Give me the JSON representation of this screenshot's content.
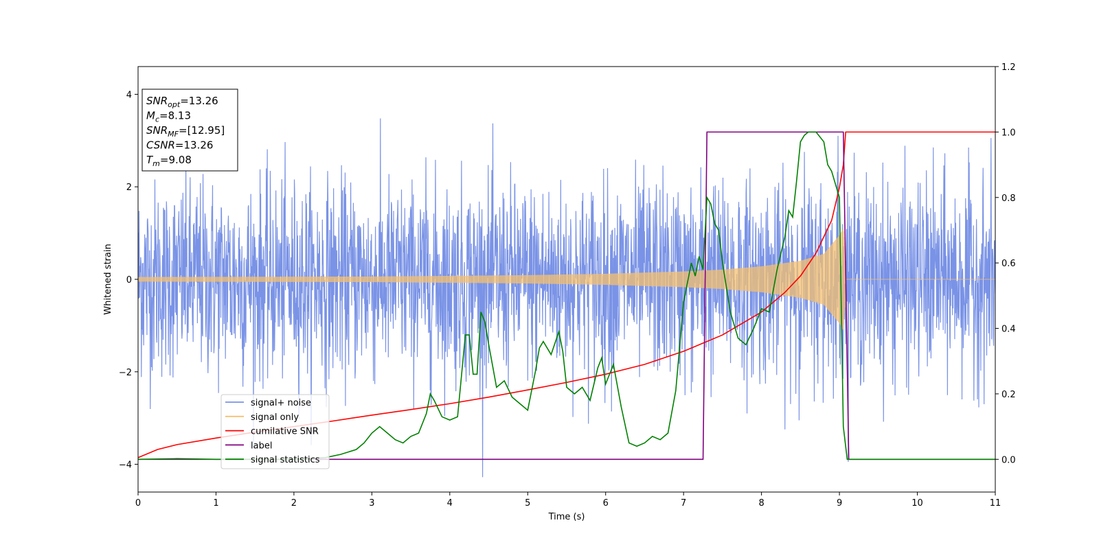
{
  "chart_data": {
    "type": "line",
    "title": "",
    "xlabel": "Time (s)",
    "ylabel": "Whitened strain",
    "ylabel_right": "",
    "xlim": [
      0,
      11
    ],
    "ylim": [
      -4.6,
      4.6
    ],
    "ylim_right": [
      -0.1,
      1.2
    ],
    "x_ticks": [
      "0",
      "1",
      "2",
      "3",
      "4",
      "5",
      "6",
      "7",
      "8",
      "9",
      "10",
      "11"
    ],
    "y_ticks_left": [
      "−4",
      "−2",
      "0",
      "2",
      "4"
    ],
    "y_ticks_right": [
      "0.0",
      "0.2",
      "0.4",
      "0.6",
      "0.8",
      "1.0",
      "1.2"
    ],
    "grid": false,
    "legend": {
      "placement": "lower-left",
      "entries": [
        "signal+ noise",
        "signal only",
        "cumilative SNR",
        "label",
        "signal statistics"
      ]
    },
    "annotation": {
      "lines": [
        {
          "sym": "SNR",
          "sub": "opt",
          "value": "=13.26"
        },
        {
          "sym": "M",
          "sub": "c",
          "value": "=8.13"
        },
        {
          "sym": "SNR",
          "sub": "MF",
          "value": "=[12.95]"
        },
        {
          "sym": "CSNR",
          "sub": "",
          "value": "=13.26"
        },
        {
          "sym": "T",
          "sub": "m",
          "value": "=9.08"
        }
      ]
    },
    "series": [
      {
        "name": "signal+ noise",
        "axis": "left",
        "color": "#7a93e6",
        "description_params": {
          "noise_sigma": 1.05,
          "x_start": 0,
          "x_end": 11
        }
      },
      {
        "name": "signal only",
        "axis": "left",
        "color": "#f5c06f",
        "envelope": {
          "x": [
            0,
            3,
            5,
            6,
            7,
            7.5,
            8,
            8.5,
            8.8,
            9.0,
            9.05,
            9.1,
            11
          ],
          "amp": [
            0.05,
            0.06,
            0.09,
            0.12,
            0.17,
            0.21,
            0.28,
            0.4,
            0.55,
            0.95,
            1.1,
            0,
            0
          ]
        }
      },
      {
        "name": "cumilative SNR",
        "axis": "right",
        "color": "#ff0000",
        "x": [
          0,
          0.25,
          0.5,
          1,
          1.5,
          2,
          2.5,
          3,
          3.5,
          4,
          4.5,
          5,
          5.5,
          6,
          6.5,
          7,
          7.5,
          8,
          8.3,
          8.5,
          8.7,
          8.9,
          9.0,
          9.05,
          9.08,
          11
        ],
        "values": [
          0.005,
          0.03,
          0.045,
          0.065,
          0.083,
          0.1,
          0.117,
          0.135,
          0.152,
          0.17,
          0.19,
          0.212,
          0.235,
          0.26,
          0.29,
          0.33,
          0.38,
          0.45,
          0.51,
          0.56,
          0.63,
          0.73,
          0.83,
          0.9,
          1.0,
          1.0
        ]
      },
      {
        "name": "label",
        "axis": "right",
        "color": "#800080",
        "x": [
          0,
          7.25,
          7.3,
          9.05,
          9.12,
          11
        ],
        "values": [
          0,
          0,
          1,
          1,
          0,
          0
        ]
      },
      {
        "name": "signal statistics",
        "axis": "right",
        "color": "#008000",
        "x": [
          0,
          0.5,
          1,
          1.5,
          2,
          2.4,
          2.6,
          2.8,
          2.9,
          3.0,
          3.1,
          3.2,
          3.3,
          3.4,
          3.5,
          3.6,
          3.7,
          3.75,
          3.8,
          3.9,
          4.0,
          4.1,
          4.2,
          4.25,
          4.3,
          4.35,
          4.4,
          4.45,
          4.5,
          4.6,
          4.7,
          4.8,
          4.9,
          5.0,
          5.1,
          5.15,
          5.2,
          5.3,
          5.4,
          5.45,
          5.5,
          5.6,
          5.7,
          5.8,
          5.9,
          5.95,
          6.0,
          6.1,
          6.2,
          6.3,
          6.4,
          6.5,
          6.6,
          6.7,
          6.8,
          6.9,
          7.0,
          7.05,
          7.1,
          7.15,
          7.2,
          7.25,
          7.3,
          7.35,
          7.4,
          7.45,
          7.5,
          7.6,
          7.7,
          7.8,
          7.9,
          8.0,
          8.1,
          8.2,
          8.3,
          8.35,
          8.4,
          8.45,
          8.5,
          8.55,
          8.6,
          8.7,
          8.8,
          8.85,
          8.9,
          9.0,
          9.05,
          9.1,
          9.15,
          11
        ],
        "values": [
          0,
          0.002,
          0.0,
          0.0,
          0.0,
          0.005,
          0.015,
          0.03,
          0.05,
          0.08,
          0.1,
          0.08,
          0.06,
          0.05,
          0.07,
          0.08,
          0.14,
          0.2,
          0.18,
          0.13,
          0.12,
          0.13,
          0.38,
          0.38,
          0.26,
          0.26,
          0.45,
          0.42,
          0.35,
          0.22,
          0.24,
          0.19,
          0.17,
          0.15,
          0.27,
          0.34,
          0.36,
          0.32,
          0.39,
          0.33,
          0.22,
          0.2,
          0.22,
          0.18,
          0.28,
          0.31,
          0.23,
          0.29,
          0.16,
          0.05,
          0.04,
          0.05,
          0.07,
          0.06,
          0.08,
          0.21,
          0.48,
          0.54,
          0.6,
          0.56,
          0.62,
          0.58,
          0.8,
          0.78,
          0.72,
          0.7,
          0.6,
          0.45,
          0.37,
          0.35,
          0.4,
          0.46,
          0.45,
          0.58,
          0.68,
          0.76,
          0.74,
          0.85,
          0.97,
          0.99,
          1.0,
          1.0,
          0.97,
          0.9,
          0.88,
          0.8,
          0.1,
          0.0,
          0.0,
          0.0
        ]
      }
    ]
  }
}
